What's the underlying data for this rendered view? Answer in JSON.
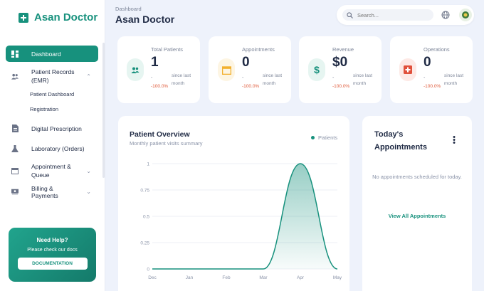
{
  "brand": {
    "name": "Asan Doctor"
  },
  "header": {
    "breadcrumb": "Dashboard",
    "title": "Asan Doctor",
    "search_placeholder": "Search..."
  },
  "sidebar": {
    "items": [
      {
        "label": "Dashboard",
        "icon": "grid-icon",
        "active": true
      },
      {
        "label": "Patient Records (EMR)",
        "icon": "users-icon",
        "expanded": true
      },
      {
        "label": "Digital Prescription",
        "icon": "document-icon"
      },
      {
        "label": "Laboratory (Orders)",
        "icon": "flask-icon"
      },
      {
        "label": "Appointment & Queue",
        "icon": "calendar-icon"
      },
      {
        "label": "Billing & Payments",
        "icon": "money-icon"
      }
    ],
    "subitems": [
      "Patient Dashboard",
      "Registration"
    ]
  },
  "help": {
    "title": "Need Help?",
    "text": "Please check our docs",
    "button": "DOCUMENTATION"
  },
  "stats": [
    {
      "label": "Total Patients",
      "value": "1",
      "dash": "-",
      "change": "-100.0%",
      "since": "since last month",
      "icon": "users-icon",
      "color": "#17917d",
      "bg": "#e6f5f1"
    },
    {
      "label": "Appointments",
      "value": "0",
      "dash": "-",
      "change": "-100.0%",
      "since": "since last month",
      "icon": "calendar-icon",
      "color": "#f2b02f",
      "bg": "#fdf5e3"
    },
    {
      "label": "Revenue",
      "value": "$0",
      "dash": "-",
      "change": "-100.0%",
      "since": "since last month",
      "icon": "dollar-icon",
      "color": "#17917d",
      "bg": "#e6f5f1"
    },
    {
      "label": "Operations",
      "value": "0",
      "dash": "-",
      "change": "-100.0%",
      "since": "since last month",
      "icon": "medical-cross-icon",
      "color": "#e0503a",
      "bg": "#fde9e5"
    }
  ],
  "overview": {
    "title": "Patient Overview",
    "subtitle": "Monthly patient visits summary"
  },
  "chart_data": {
    "type": "area",
    "categories": [
      "Dec",
      "Jan",
      "Feb",
      "Mar",
      "Apr",
      "May"
    ],
    "series": [
      {
        "name": "Patients",
        "values": [
          0,
          0,
          0,
          0,
          1,
          0
        ]
      }
    ],
    "y_ticks": [
      "0",
      "0.25",
      "0.5",
      "0.75",
      "1"
    ],
    "ylim": [
      0,
      1
    ],
    "legend": "top-right",
    "grid": true,
    "color": "#17917d"
  },
  "appointments": {
    "title": "Today's Appointments",
    "empty_text": "No appointments scheduled for today.",
    "link": "View All Appointments"
  }
}
